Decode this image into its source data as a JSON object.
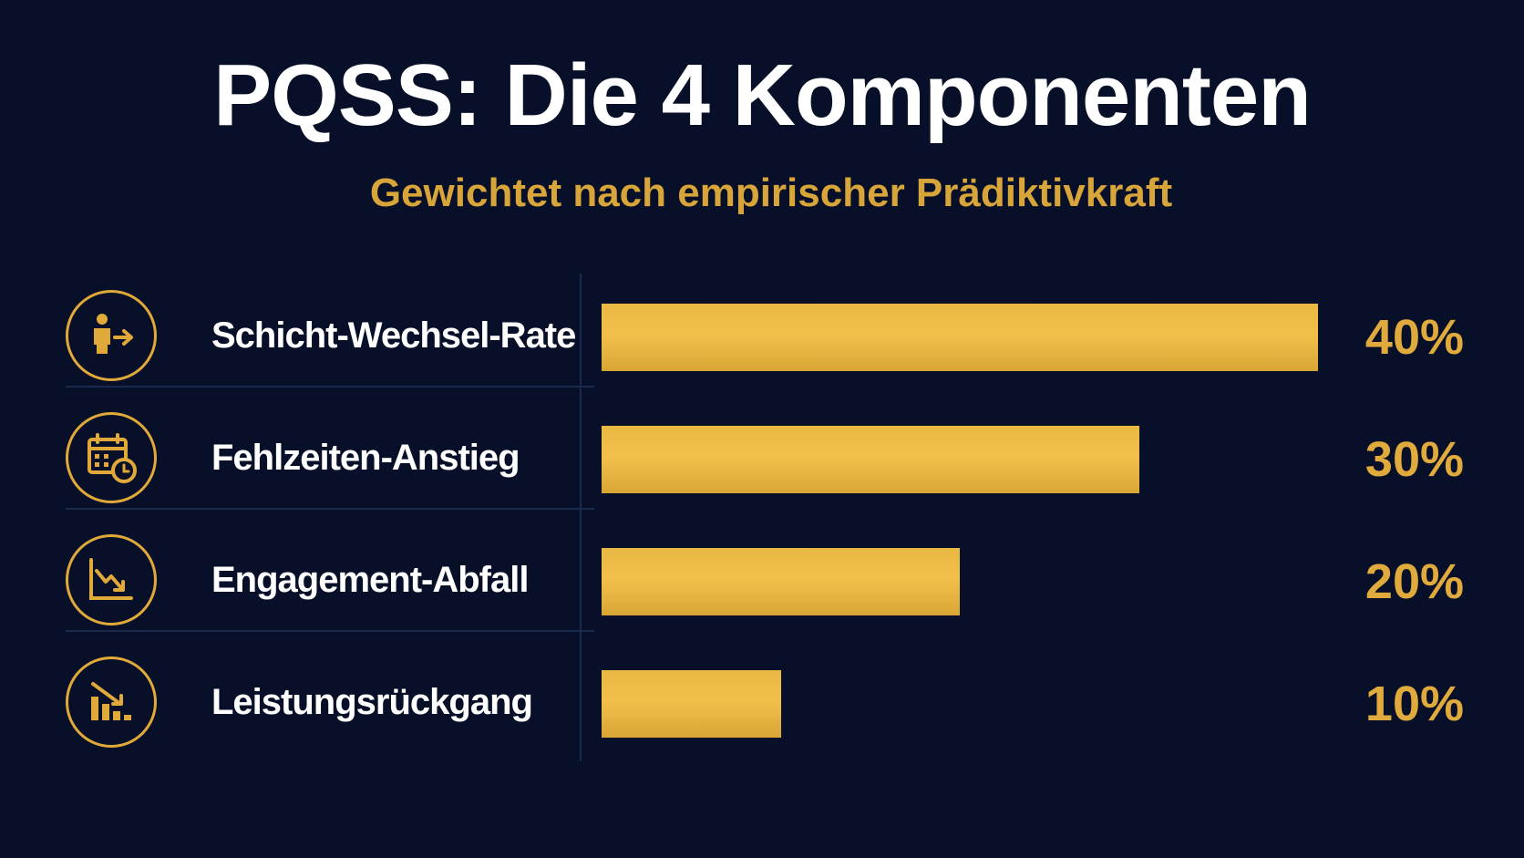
{
  "title": "PQSS: Die 4 Komponenten",
  "subtitle": "Gewichtet nach empirischer Prädiktivkraft",
  "colors": {
    "background": "#081029",
    "accent": "#e0ab3c",
    "bar": "#f0bf48",
    "text": "#ffffff"
  },
  "chart_data": {
    "type": "bar",
    "orientation": "horizontal",
    "title": "PQSS: Die 4 Komponenten",
    "subtitle": "Gewichtet nach empirischer Prädiktivkraft",
    "categories": [
      "Schicht-Wechsel-Rate",
      "Fehlzeiten-Anstieg",
      "Engagement-Abfall",
      "Leistungsrückgang"
    ],
    "values": [
      40,
      30,
      20,
      10
    ],
    "value_labels": [
      "40%",
      "30%",
      "20%",
      "10%"
    ],
    "icons": [
      "person-arrow-icon",
      "calendar-clock-icon",
      "trend-down-icon",
      "bar-chart-down-icon"
    ],
    "xlim": [
      0,
      40
    ],
    "grid": false,
    "legend": "none"
  }
}
